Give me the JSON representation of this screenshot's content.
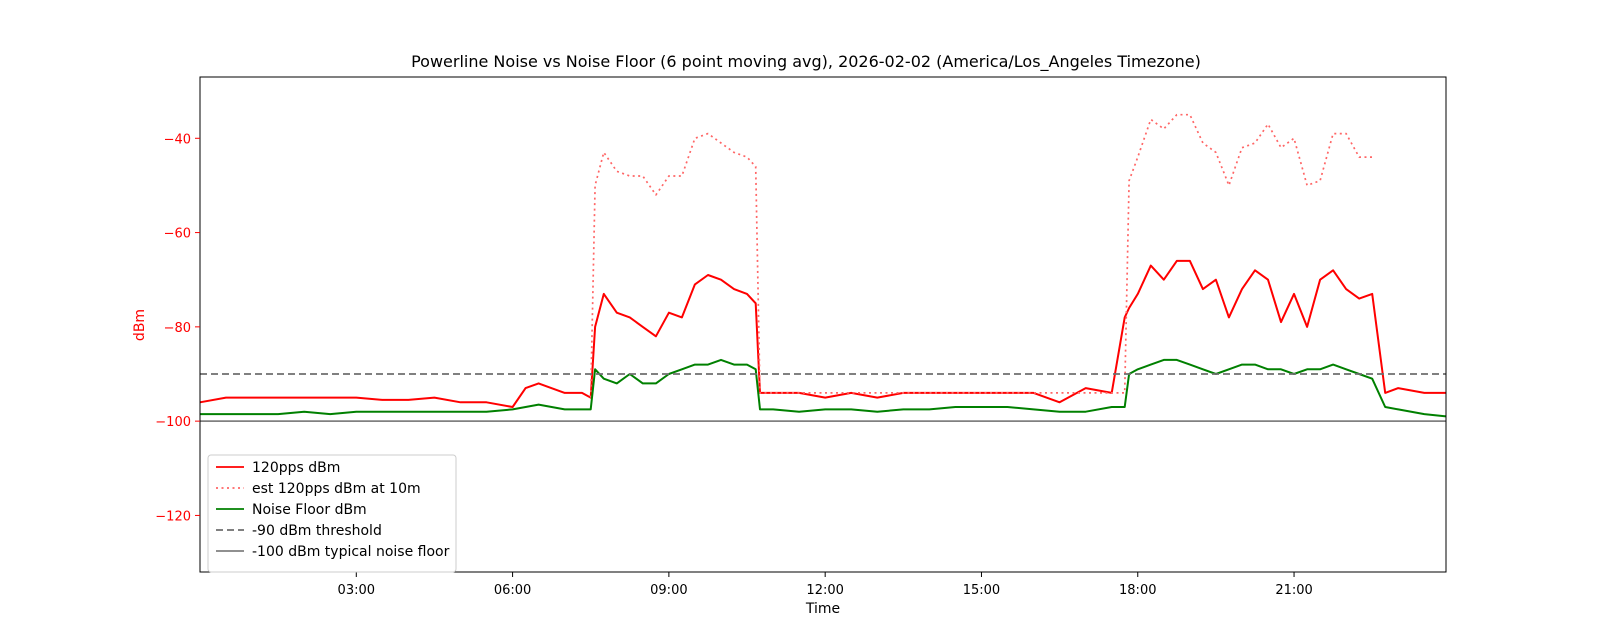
{
  "chart_data": {
    "type": "line",
    "title": "Powerline Noise vs Noise Floor (6 point moving avg), 2026-02-02 (America/Los_Angeles Timezone)",
    "xlabel": "Time",
    "ylabel": "dBm",
    "xlim": [
      "00:00",
      "23:55"
    ],
    "ylim": [
      -132,
      -27
    ],
    "x_ticks": [
      "03:00",
      "06:00",
      "09:00",
      "12:00",
      "15:00",
      "18:00",
      "21:00"
    ],
    "y_ticks": [
      -40,
      -60,
      -80,
      -100,
      -120
    ],
    "y_tick_labels": [
      "−40",
      "−60",
      "−80",
      "−100",
      "−120"
    ],
    "y_tick_color": "#ff0000",
    "grid": false,
    "legend_position": "lower-left",
    "series": [
      {
        "name": "120pps dBm",
        "color": "#ff0000",
        "style": "solid",
        "x": [
          "00:00",
          "00:30",
          "01:00",
          "01:30",
          "02:00",
          "02:30",
          "03:00",
          "03:30",
          "04:00",
          "04:30",
          "05:00",
          "05:30",
          "06:00",
          "06:15",
          "06:30",
          "07:00",
          "07:20",
          "07:30",
          "07:35",
          "07:45",
          "08:00",
          "08:15",
          "08:30",
          "08:45",
          "09:00",
          "09:15",
          "09:30",
          "09:45",
          "10:00",
          "10:15",
          "10:30",
          "10:40",
          "10:45",
          "11:00",
          "11:30",
          "12:00",
          "12:30",
          "13:00",
          "13:30",
          "14:00",
          "14:30",
          "15:00",
          "15:30",
          "16:00",
          "16:30",
          "17:00",
          "17:30",
          "17:45",
          "17:50",
          "18:00",
          "18:15",
          "18:30",
          "18:45",
          "19:00",
          "19:15",
          "19:30",
          "19:45",
          "20:00",
          "20:15",
          "20:30",
          "20:45",
          "21:00",
          "21:15",
          "21:30",
          "21:45",
          "22:00",
          "22:15",
          "22:30",
          "22:45",
          "23:00",
          "23:30",
          "23:55"
        ],
        "y": [
          -96,
          -95,
          -95,
          -95,
          -95,
          -95,
          -95,
          -95.5,
          -95.5,
          -95,
          -96,
          -96,
          -97,
          -93,
          -92,
          -94,
          -94,
          -95,
          -80,
          -73,
          -77,
          -78,
          -80,
          -82,
          -77,
          -78,
          -71,
          -69,
          -70,
          -72,
          -73,
          -75,
          -94,
          -94,
          -94,
          -95,
          -94,
          -95,
          -94,
          -94,
          -94,
          -94,
          -94,
          -94,
          -96,
          -93,
          -94,
          -78,
          -76,
          -73,
          -67,
          -70,
          -66,
          -66,
          -72,
          -70,
          -78,
          -72,
          -68,
          -70,
          -79,
          -73,
          -80,
          -70,
          -68,
          -72,
          -74,
          -73,
          -94,
          -93,
          -94,
          -94
        ]
      },
      {
        "name": "est 120pps dBm at 10m",
        "color": "#ff6666",
        "style": "dotted",
        "x": [
          "07:30",
          "07:35",
          "07:45",
          "08:00",
          "08:15",
          "08:30",
          "08:45",
          "09:00",
          "09:15",
          "09:30",
          "09:45",
          "10:00",
          "10:15",
          "10:30",
          "10:40",
          "10:45",
          "17:45",
          "17:50",
          "18:00",
          "18:15",
          "18:30",
          "18:45",
          "19:00",
          "19:15",
          "19:30",
          "19:45",
          "20:00",
          "20:15",
          "20:30",
          "20:45",
          "21:00",
          "21:15",
          "21:30",
          "21:45",
          "22:00",
          "22:15",
          "22:30"
        ],
        "y": [
          -95,
          -50,
          -43,
          -47,
          -48,
          -48,
          -52,
          -48,
          -48,
          -40,
          -39,
          -41,
          -43,
          -44,
          -46,
          -94,
          -94,
          -49,
          -44,
          -36,
          -38,
          -35,
          -35,
          -41,
          -43,
          -50,
          -42,
          -41,
          -37,
          -42,
          -40,
          -50,
          -49,
          -39,
          -39,
          -44,
          -44
        ]
      },
      {
        "name": "Noise Floor dBm",
        "color": "#008000",
        "style": "solid",
        "x": [
          "00:00",
          "00:30",
          "01:00",
          "01:30",
          "02:00",
          "02:30",
          "03:00",
          "03:30",
          "04:00",
          "04:30",
          "05:00",
          "05:30",
          "06:00",
          "06:30",
          "07:00",
          "07:30",
          "07:35",
          "07:45",
          "08:00",
          "08:15",
          "08:30",
          "08:45",
          "09:00",
          "09:15",
          "09:30",
          "09:45",
          "10:00",
          "10:15",
          "10:30",
          "10:40",
          "10:45",
          "11:00",
          "11:30",
          "12:00",
          "12:30",
          "13:00",
          "13:30",
          "14:00",
          "14:30",
          "15:00",
          "15:30",
          "16:00",
          "16:30",
          "17:00",
          "17:30",
          "17:45",
          "17:50",
          "18:00",
          "18:15",
          "18:30",
          "18:45",
          "19:00",
          "19:15",
          "19:30",
          "19:45",
          "20:00",
          "20:15",
          "20:30",
          "20:45",
          "21:00",
          "21:15",
          "21:30",
          "21:45",
          "22:00",
          "22:15",
          "22:30",
          "22:45",
          "23:00",
          "23:30",
          "23:55"
        ],
        "y": [
          -98.5,
          -98.5,
          -98.5,
          -98.5,
          -98,
          -98.5,
          -98,
          -98,
          -98,
          -98,
          -98,
          -98,
          -97.5,
          -96.5,
          -97.5,
          -97.5,
          -89,
          -91,
          -92,
          -90,
          -92,
          -92,
          -90,
          -89,
          -88,
          -88,
          -87,
          -88,
          -88,
          -89,
          -97.5,
          -97.5,
          -98,
          -97.5,
          -97.5,
          -98,
          -97.5,
          -97.5,
          -97,
          -97,
          -97,
          -97.5,
          -98,
          -98,
          -97,
          -97,
          -90,
          -89,
          -88,
          -87,
          -87,
          -88,
          -89,
          -90,
          -89,
          -88,
          -88,
          -89,
          -89,
          -90,
          -89,
          -89,
          -88,
          -89,
          -90,
          -91,
          -97,
          -97.5,
          -98.5,
          -99
        ]
      },
      {
        "name": "-90 dBm threshold",
        "color": "#6e6e6e",
        "style": "dashed",
        "x": [
          "00:00",
          "23:55"
        ],
        "y": [
          -90,
          -90
        ]
      },
      {
        "name": "-100 dBm typical noise floor",
        "color": "#808080",
        "style": "solid",
        "x": [
          "00:00",
          "23:55"
        ],
        "y": [
          -100,
          -100
        ]
      }
    ]
  }
}
